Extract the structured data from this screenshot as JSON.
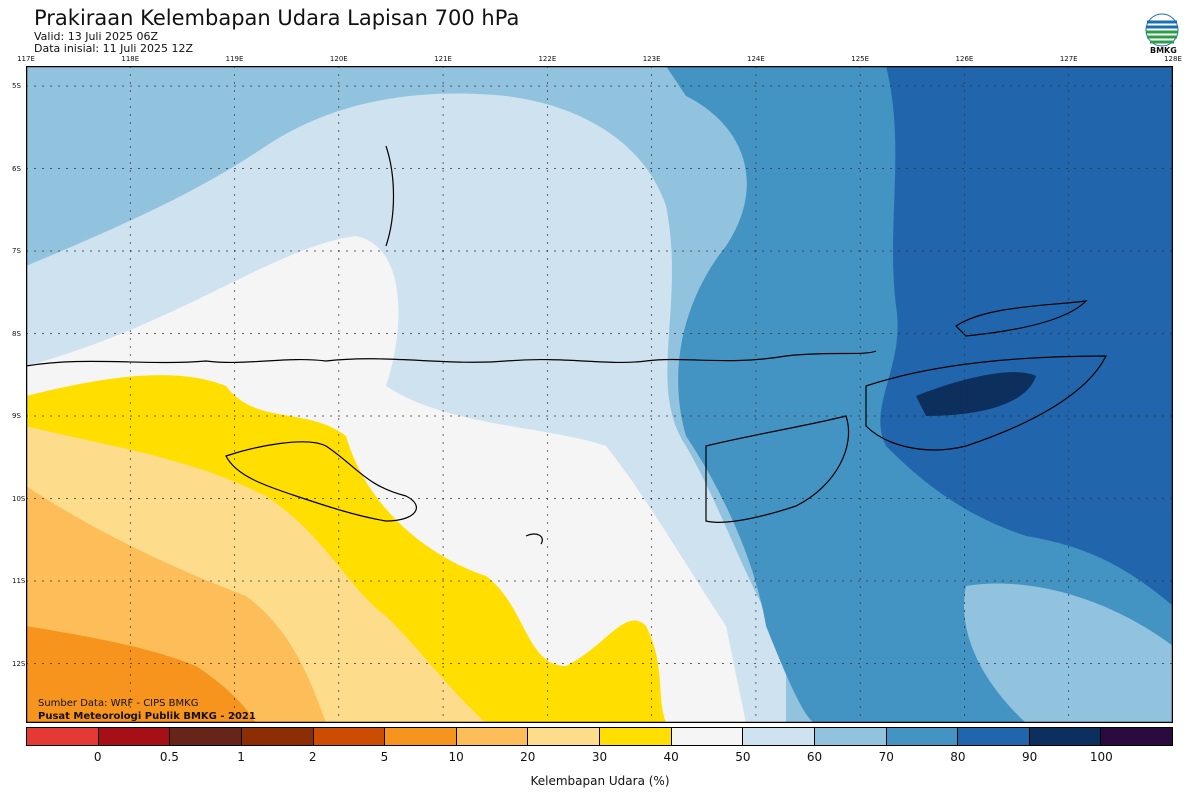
{
  "title": "Prakiraan Kelembapan Udara Lapisan 700 hPa",
  "valid": "Valid: 13 Juli 2025 06Z",
  "initial": "Data inisial: 11 Juli 2025 12Z",
  "logo_text": "BMKG",
  "lon_labels": [
    "117E",
    "118E",
    "119E",
    "120E",
    "121E",
    "122E",
    "123E",
    "124E",
    "125E",
    "126E",
    "127E",
    "128E"
  ],
  "lat_labels": [
    "5S",
    "6S",
    "7S",
    "8S",
    "9S",
    "10S",
    "11S",
    "12S"
  ],
  "source_line1": "Sumber Data: WRF - CIPS BMKG",
  "source_line2": "Pusat Meteorologi Publik BMKG - 2021",
  "colorbar": {
    "label": "Kelembapan Udara (%)",
    "ticks": [
      "0",
      "0.5",
      "1",
      "2",
      "5",
      "10",
      "20",
      "30",
      "40",
      "50",
      "60",
      "70",
      "80",
      "90",
      "100"
    ],
    "colors": [
      "#e53935",
      "#a50f15",
      "#67251a",
      "#8c2d04",
      "#cc4c02",
      "#f7941d",
      "#fdbe5a",
      "#fddc8c",
      "#ffde00",
      "#f5f5f5",
      "#cfe2f0",
      "#92c3de",
      "#4393c3",
      "#2166ac",
      "#0d2f5e",
      "#2b0a3d"
    ]
  }
}
